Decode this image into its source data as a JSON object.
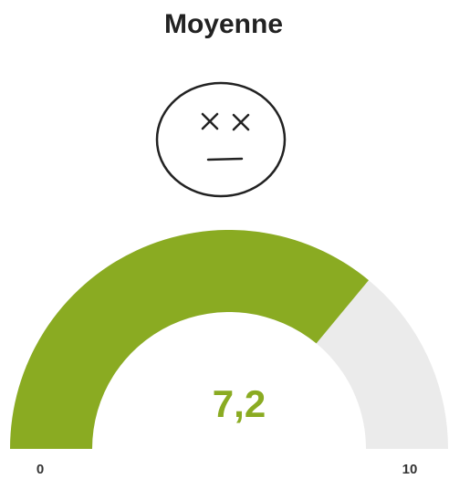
{
  "chart_data": {
    "type": "gauge",
    "title": "Moyenne",
    "values": [
      7.2
    ],
    "value_labels": [
      "7,2"
    ],
    "color": "#8aab22",
    "track_color": "#ebebeb",
    "ylim": [
      0,
      10
    ],
    "yticks": [
      0,
      10
    ]
  }
}
